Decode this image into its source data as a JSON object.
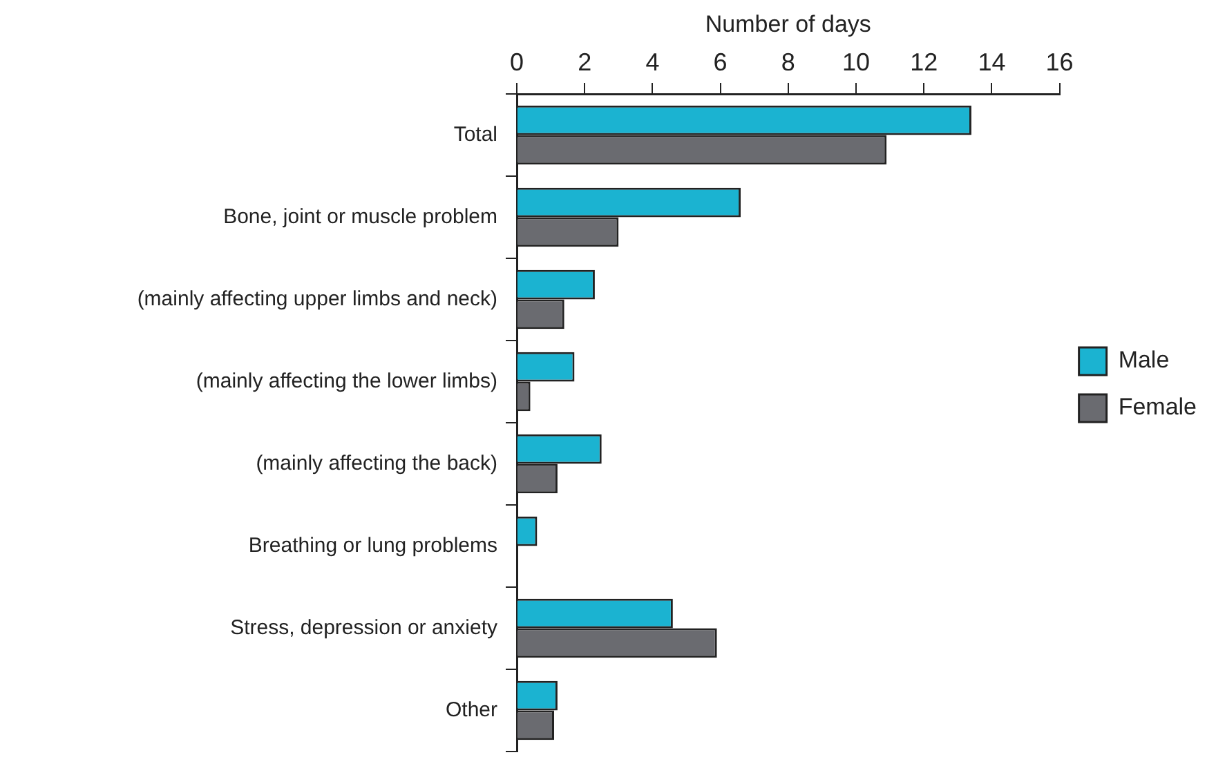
{
  "chart_data": {
    "type": "bar",
    "orientation": "horizontal",
    "xlabel": "Number of days",
    "categories": [
      "Total",
      "Bone, joint or muscle problem",
      "(mainly affecting upper limbs and neck)",
      "(mainly affecting the lower limbs)",
      "(mainly affecting the back)",
      "Breathing or lung problems",
      "Stress, depression or anxiety",
      "Other"
    ],
    "series": [
      {
        "name": "Male",
        "color": "#1bb3d1",
        "values": [
          13.4,
          6.6,
          2.3,
          1.7,
          2.5,
          0.6,
          4.6,
          1.2
        ]
      },
      {
        "name": "Female",
        "color": "#6a6b70",
        "values": [
          10.9,
          3.0,
          1.4,
          0.4,
          1.2,
          null,
          5.9,
          1.1
        ]
      }
    ],
    "xlim": [
      0,
      16
    ],
    "xticks": [
      0,
      2,
      4,
      6,
      8,
      10,
      12,
      14,
      16
    ],
    "grid": false,
    "legend": "right"
  }
}
